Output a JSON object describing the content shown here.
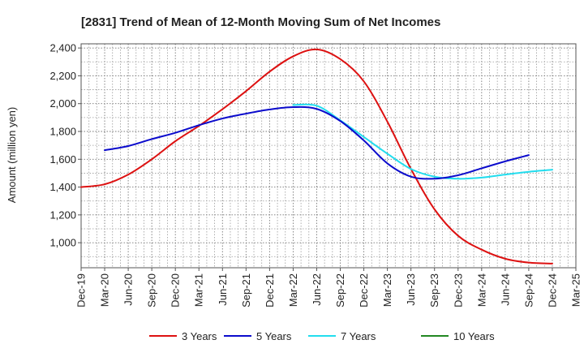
{
  "chart_data": {
    "type": "line",
    "title": "[2831]  Trend of Mean of 12-Month Moving Sum of Net Incomes",
    "xlabel": "",
    "ylabel": "Amount (million yen)",
    "ylim": [
      820,
      2430
    ],
    "yticks": [
      1000,
      1200,
      1400,
      1600,
      1800,
      2000,
      2200,
      2400
    ],
    "ytick_labels": [
      "1,000",
      "1,200",
      "1,400",
      "1,600",
      "1,800",
      "2,000",
      "2,200",
      "2,400"
    ],
    "xticks": [
      "Dec-19",
      "Mar-20",
      "Jun-20",
      "Sep-20",
      "Dec-20",
      "Mar-21",
      "Jun-21",
      "Sep-21",
      "Dec-21",
      "Mar-22",
      "Jun-22",
      "Sep-22",
      "Dec-22",
      "Mar-23",
      "Jun-23",
      "Sep-23",
      "Dec-23",
      "Mar-24",
      "Jun-24",
      "Sep-24",
      "Dec-24",
      "Mar-25"
    ],
    "grid": true,
    "legend_position": "bottom",
    "series": [
      {
        "name": "3 Years",
        "color": "#dd1111",
        "start_index": 0,
        "values": [
          1400,
          1420,
          1490,
          1600,
          1730,
          1840,
          1960,
          2090,
          2230,
          2340,
          2390,
          2320,
          2160,
          1870,
          1530,
          1240,
          1050,
          950,
          885,
          857,
          850
        ]
      },
      {
        "name": "5 Years",
        "color": "#0b0bcc",
        "start_index": 1,
        "values": [
          1665,
          1695,
          1745,
          1790,
          1845,
          1893,
          1928,
          1958,
          1975,
          1962,
          1875,
          1735,
          1570,
          1475,
          1460,
          1485,
          1535,
          1585,
          1630
        ]
      },
      {
        "name": "7 Years",
        "color": "#22ddee",
        "start_index": 9,
        "values": [
          1990,
          1985,
          1880,
          1760,
          1640,
          1530,
          1475,
          1460,
          1468,
          1490,
          1510,
          1525
        ]
      },
      {
        "name": "10 Years",
        "color": "#228822",
        "start_index": 0,
        "values": []
      }
    ]
  }
}
